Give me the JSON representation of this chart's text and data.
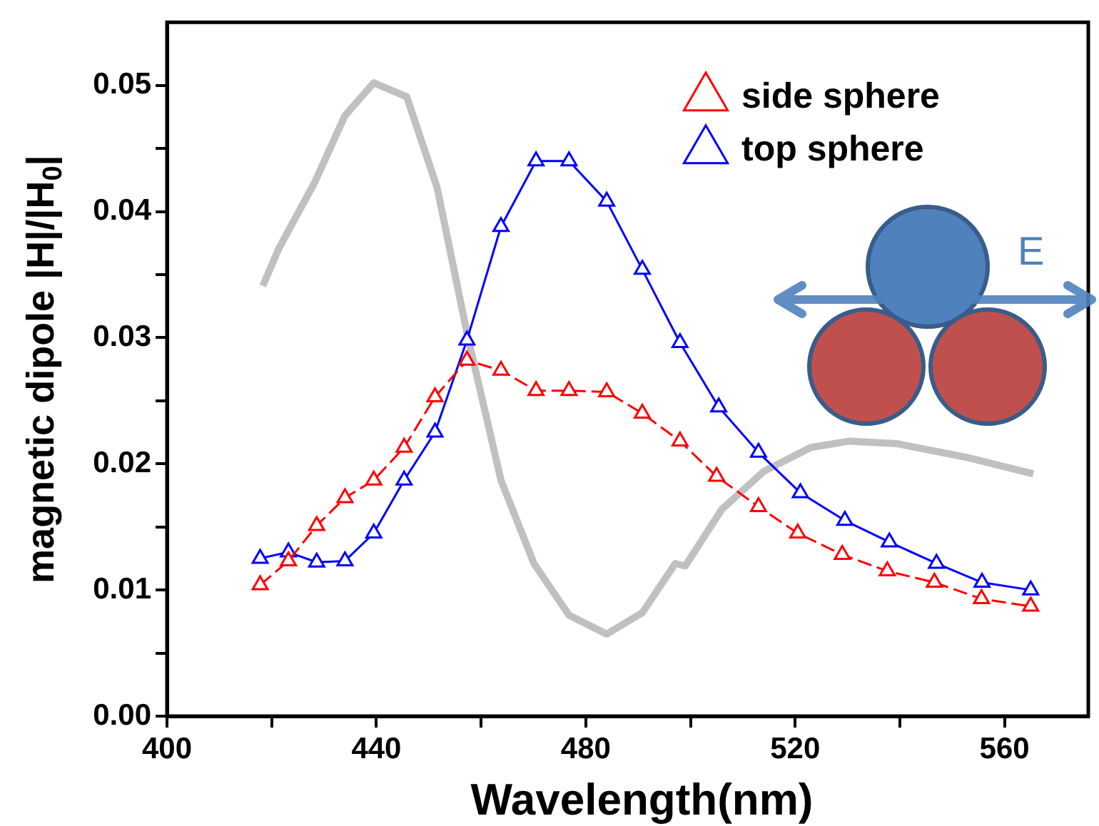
{
  "chart_data": {
    "type": "line",
    "xlabel": "Wavelength(nm)",
    "ylabel": "magnetic dipole |H|/|H$_{0}$|",
    "xlim": [
      400,
      576
    ],
    "xticks": [
      400,
      {
        "value": 420,
        "label": null
      },
      440,
      {
        "value": 460,
        "label": null
      },
      480,
      {
        "value": 500,
        "label": null
      },
      520,
      {
        "value": 540,
        "label": null
      },
      560
    ],
    "ylim": [
      0,
      0.055
    ],
    "yticks": [
      {
        "value": 0,
        "label": "0.00"
      },
      {
        "value": 0.005,
        "label": null
      },
      {
        "value": 0.01,
        "label": "0.01"
      },
      {
        "value": 0.015,
        "label": null
      },
      {
        "value": 0.02,
        "label": "0.02"
      },
      {
        "value": 0.025,
        "label": null
      },
      {
        "value": 0.03,
        "label": "0.03"
      },
      {
        "value": 0.035,
        "label": null
      },
      {
        "value": 0.04,
        "label": "0.04"
      },
      {
        "value": 0.045,
        "label": null
      },
      {
        "value": 0.05,
        "label": "0.05"
      }
    ],
    "grid": false,
    "legend": "top right",
    "marker": "triangle",
    "line_style": "dashed",
    "annotations": [
      "E"
    ],
    "series": [
      {
        "name": "side sphere",
        "color": "#ff0000",
        "x": [
          417.8,
          423.2,
          428.6,
          434,
          439.5,
          445.3,
          451.2,
          457.3,
          463.8,
          470.5,
          476.8,
          484,
          490.8,
          498,
          505,
          513,
          520.5,
          529,
          537.6,
          546.6,
          555.6,
          565
        ],
        "values": [
          0.0104,
          0.0123,
          0.0151,
          0.0173,
          0.0187,
          0.0213,
          0.0253,
          0.0282,
          0.0274,
          0.0258,
          0.0258,
          0.0257,
          0.024,
          0.0218,
          0.019,
          0.0166,
          0.0145,
          0.0128,
          0.0115,
          0.0106,
          0.0093,
          0.0087
        ]
      },
      {
        "name": "top sphere",
        "color": "#0000ff",
        "x": [
          417.8,
          423.2,
          428.6,
          434,
          439.5,
          445.3,
          451.2,
          457.3,
          463.8,
          470.5,
          476.8,
          484,
          490.8,
          498,
          505.4,
          513,
          521,
          529.5,
          538,
          547,
          555.7,
          565
        ],
        "values": [
          0.0125,
          0.013,
          0.0122,
          0.0123,
          0.0145,
          0.0187,
          0.0225,
          0.0298,
          0.0388,
          0.044,
          0.044,
          0.0408,
          0.0354,
          0.0296,
          0.0245,
          0.0209,
          0.0177,
          0.0155,
          0.0138,
          0.0121,
          0.0106,
          0.01
        ],
        "line_style": "solid"
      },
      {
        "color": "#c0c0c0",
        "marker": "none",
        "line_style": "solid",
        "x": [
          418.3,
          421.4,
          428.2,
          434,
          439.5,
          445.8,
          451.6,
          457.5,
          463.8,
          470.1,
          476.8,
          484,
          490.8,
          497.1,
          499,
          506,
          514,
          523,
          530.4,
          539.4,
          552.9,
          565.5
        ],
        "values": [
          0.0341,
          0.0371,
          0.0423,
          0.0476,
          0.0502,
          0.0491,
          0.0419,
          0.03,
          0.0187,
          0.0121,
          0.008,
          0.0065,
          0.0082,
          0.0121,
          0.0119,
          0.0164,
          0.0194,
          0.0213,
          0.0218,
          0.0216,
          0.0205,
          0.0192
        ]
      }
    ]
  }
}
